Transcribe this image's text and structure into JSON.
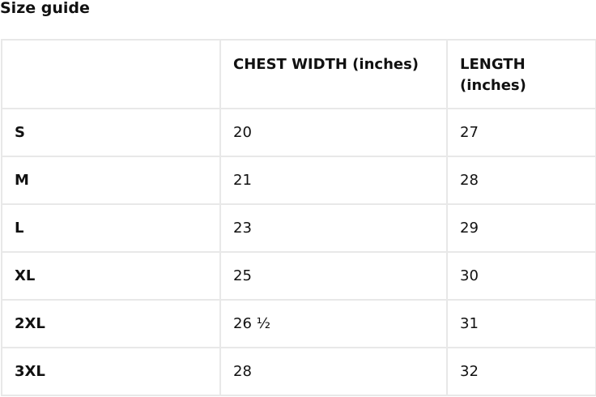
{
  "title": "Size guide",
  "table": {
    "headers": [
      "",
      "CHEST WIDTH (inches)",
      "LENGTH (inches)"
    ],
    "rows": [
      {
        "size": "S",
        "chest": "20",
        "length": "27"
      },
      {
        "size": "M",
        "chest": "21",
        "length": "28"
      },
      {
        "size": "L",
        "chest": "23",
        "length": "29"
      },
      {
        "size": "XL",
        "chest": "25",
        "length": "30"
      },
      {
        "size": "2XL",
        "chest": "26 ½",
        "length": "31"
      },
      {
        "size": "3XL",
        "chest": "28",
        "length": "32"
      }
    ]
  }
}
